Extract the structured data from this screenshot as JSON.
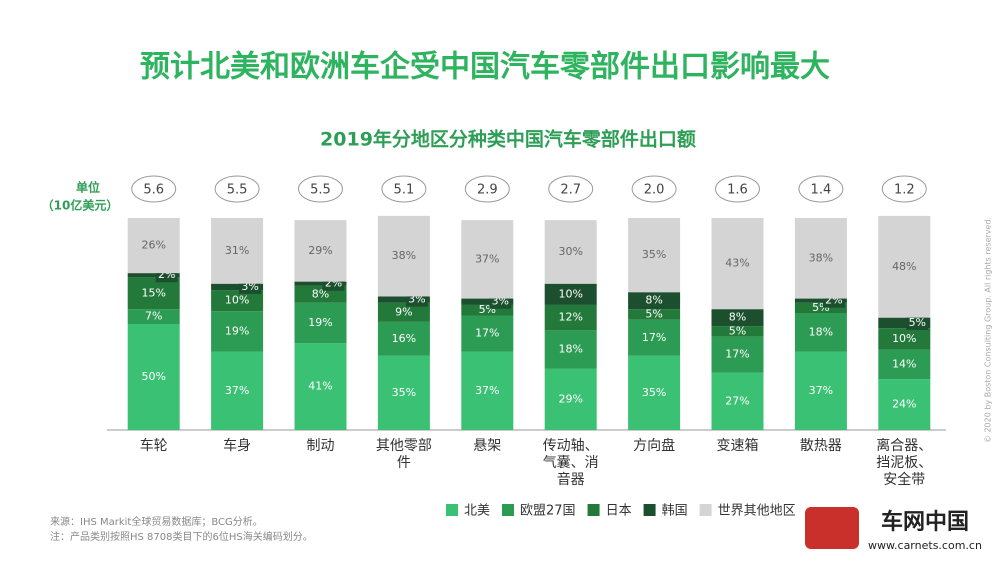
{
  "chart_data": {
    "type": "stacked_bar",
    "title": "预计北美和欧洲车企受中国汽车零部件出口影响最大",
    "subtitle": "2019年分地区分种类中国汽车零部件出口额",
    "unit_label": [
      "单位",
      "（10亿美元）"
    ],
    "categories": [
      "车轮",
      "车身",
      "制动",
      "其他零部件",
      "悬架",
      "传动轴、气囊、消音器",
      "方向盘",
      "变速箱",
      "散热器",
      "离合器、挡泥板、安全带"
    ],
    "totals": {
      "values": [
        5.6,
        5.5,
        5.5,
        5.1,
        2.9,
        2.7,
        2.0,
        1.6,
        1.4,
        1.2
      ],
      "value_labels": [
        "5.6",
        "5.5",
        "5.5",
        "5.1",
        "2.9",
        "2.7",
        "2.0",
        "1.6",
        "1.4",
        "1.2"
      ]
    },
    "ylim": [
      0,
      100
    ],
    "series": [
      {
        "name": "北美",
        "color": "#3bc174",
        "label_color": "#ffffff",
        "values": [
          50,
          37,
          41,
          35,
          37,
          29,
          35,
          27,
          37,
          24
        ],
        "value_labels": [
          "50%",
          "37%",
          "41%",
          "35%",
          "37%",
          "29%",
          "35%",
          "27%",
          "37%",
          "24%"
        ]
      },
      {
        "name": "欧盟27国",
        "color": "#2c9b53",
        "label_color": "#ffffff",
        "values": [
          7,
          19,
          19,
          16,
          17,
          18,
          17,
          17,
          18,
          14
        ],
        "value_labels": [
          "7%",
          "19%",
          "19%",
          "16%",
          "17%",
          "18%",
          "17%",
          "17%",
          "18%",
          "14%"
        ]
      },
      {
        "name": "日本",
        "color": "#23793a",
        "label_color": "#ffffff",
        "values": [
          15,
          10,
          8,
          9,
          5,
          12,
          5,
          5,
          5,
          10
        ],
        "value_labels": [
          "15%",
          "10%",
          "8%",
          "9%",
          "5%",
          "12%",
          "5%",
          "5%",
          "5%",
          "10%"
        ]
      },
      {
        "name": "韩国",
        "color": "#1b4f2e",
        "label_color": "#ffffff",
        "values": [
          2,
          3,
          2,
          3,
          3,
          10,
          8,
          8,
          2,
          5
        ],
        "value_labels": [
          "2%",
          "3%",
          "2%",
          "3%",
          "3%",
          "10%",
          "8%",
          "8%",
          "2%",
          "5%"
        ]
      },
      {
        "name": "世界其他地区",
        "color": "#d4d4d4",
        "label_color": "#666666",
        "values": [
          26,
          31,
          29,
          38,
          37,
          30,
          35,
          43,
          38,
          48
        ],
        "value_labels": [
          "26%",
          "31%",
          "29%",
          "38%",
          "37%",
          "30%",
          "35%",
          "43%",
          "38%",
          "48%"
        ]
      }
    ],
    "notes": [
      "来源：IHS Markit全球贸易数据库；BCG分析。",
      "注：产品类别按照HS 8708类目下的6位HS海关编码划分。"
    ],
    "copyright": "© 2020 by Boston Consulting Group. All rights reserved.",
    "watermark": {
      "name": "车网中国",
      "url": "www.carnets.com.cn"
    }
  }
}
